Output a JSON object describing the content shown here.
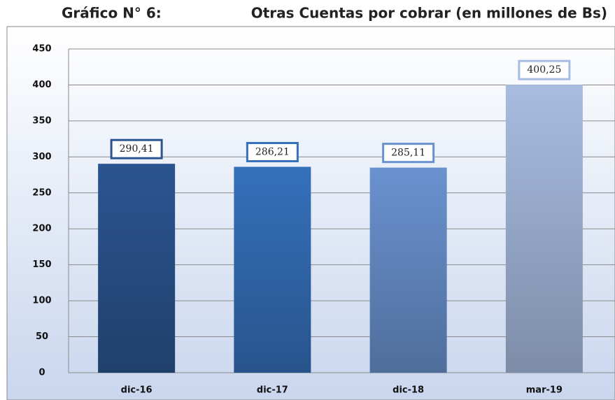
{
  "chart_data": {
    "type": "bar",
    "title": "Gráfico N° 6:",
    "subtitle": "Otras Cuentas por cobrar (en millones de Bs)",
    "categories": [
      "dic-16",
      "dic-17",
      "dic-18",
      "mar-19"
    ],
    "values": [
      290.41,
      286.21,
      285.11,
      400.25
    ],
    "value_labels": [
      "290,41",
      "286,21",
      "285,11",
      "400,25"
    ],
    "colors": [
      "#2b5590",
      "#3570bb",
      "#6a92cf",
      "#a7bce0"
    ],
    "ylim": [
      0,
      450
    ],
    "yticks": [
      0,
      50,
      100,
      150,
      200,
      250,
      300,
      350,
      400,
      450
    ],
    "grid": true
  }
}
